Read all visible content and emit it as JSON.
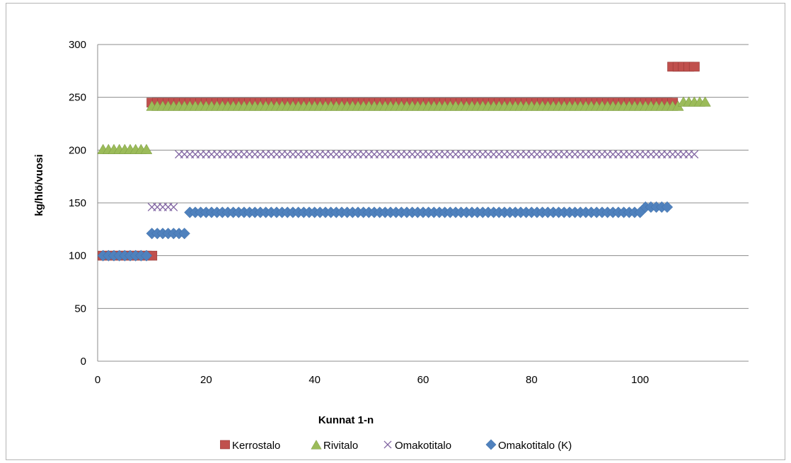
{
  "chart_data": {
    "type": "scatter",
    "title": "",
    "xlabel": "Kunnat 1-n",
    "ylabel": "kg/hlö/vuosi",
    "xlim": [
      0,
      120
    ],
    "ylim": [
      0,
      300
    ],
    "x_ticks": [
      "0",
      "20",
      "40",
      "60",
      "80",
      "100"
    ],
    "x_tick_values": [
      0,
      20,
      40,
      60,
      80,
      100
    ],
    "y_ticks": [
      "0",
      "50",
      "100",
      "150",
      "200",
      "250",
      "300"
    ],
    "y_tick_values": [
      0,
      50,
      100,
      150,
      200,
      250,
      300
    ],
    "grid": "horizontal",
    "legend_position": "bottom",
    "series": [
      {
        "name": "Kerrostalo",
        "marker": "square",
        "color": "#C0504D",
        "segments": [
          {
            "x_from": 1,
            "x_to": 10,
            "y": 100
          },
          {
            "x_from": 10,
            "x_to": 106,
            "y": 245
          },
          {
            "x_from": 106,
            "x_to": 110,
            "y": 279
          }
        ]
      },
      {
        "name": "Rivitalo",
        "marker": "triangle",
        "color": "#9BBB59",
        "segments": [
          {
            "x_from": 1,
            "x_to": 9,
            "y": 201
          },
          {
            "x_from": 10,
            "x_to": 107,
            "y": 242
          },
          {
            "x_from": 108,
            "x_to": 112,
            "y": 246
          }
        ]
      },
      {
        "name": "Omakotitalo",
        "marker": "x",
        "color": "#8064A2",
        "segments": [
          {
            "x_from": 10,
            "x_to": 14,
            "y": 146
          },
          {
            "x_from": 15,
            "x_to": 110,
            "y": 196
          }
        ]
      },
      {
        "name": "Omakotitalo (K)",
        "marker": "diamond",
        "color": "#4F81BD",
        "segments": [
          {
            "x_from": 1,
            "x_to": 9,
            "y": 100
          },
          {
            "x_from": 10,
            "x_to": 16,
            "y": 121
          },
          {
            "x_from": 17,
            "x_to": 100,
            "y": 141
          },
          {
            "x_from": 101,
            "x_to": 105,
            "y": 146
          }
        ]
      }
    ]
  }
}
